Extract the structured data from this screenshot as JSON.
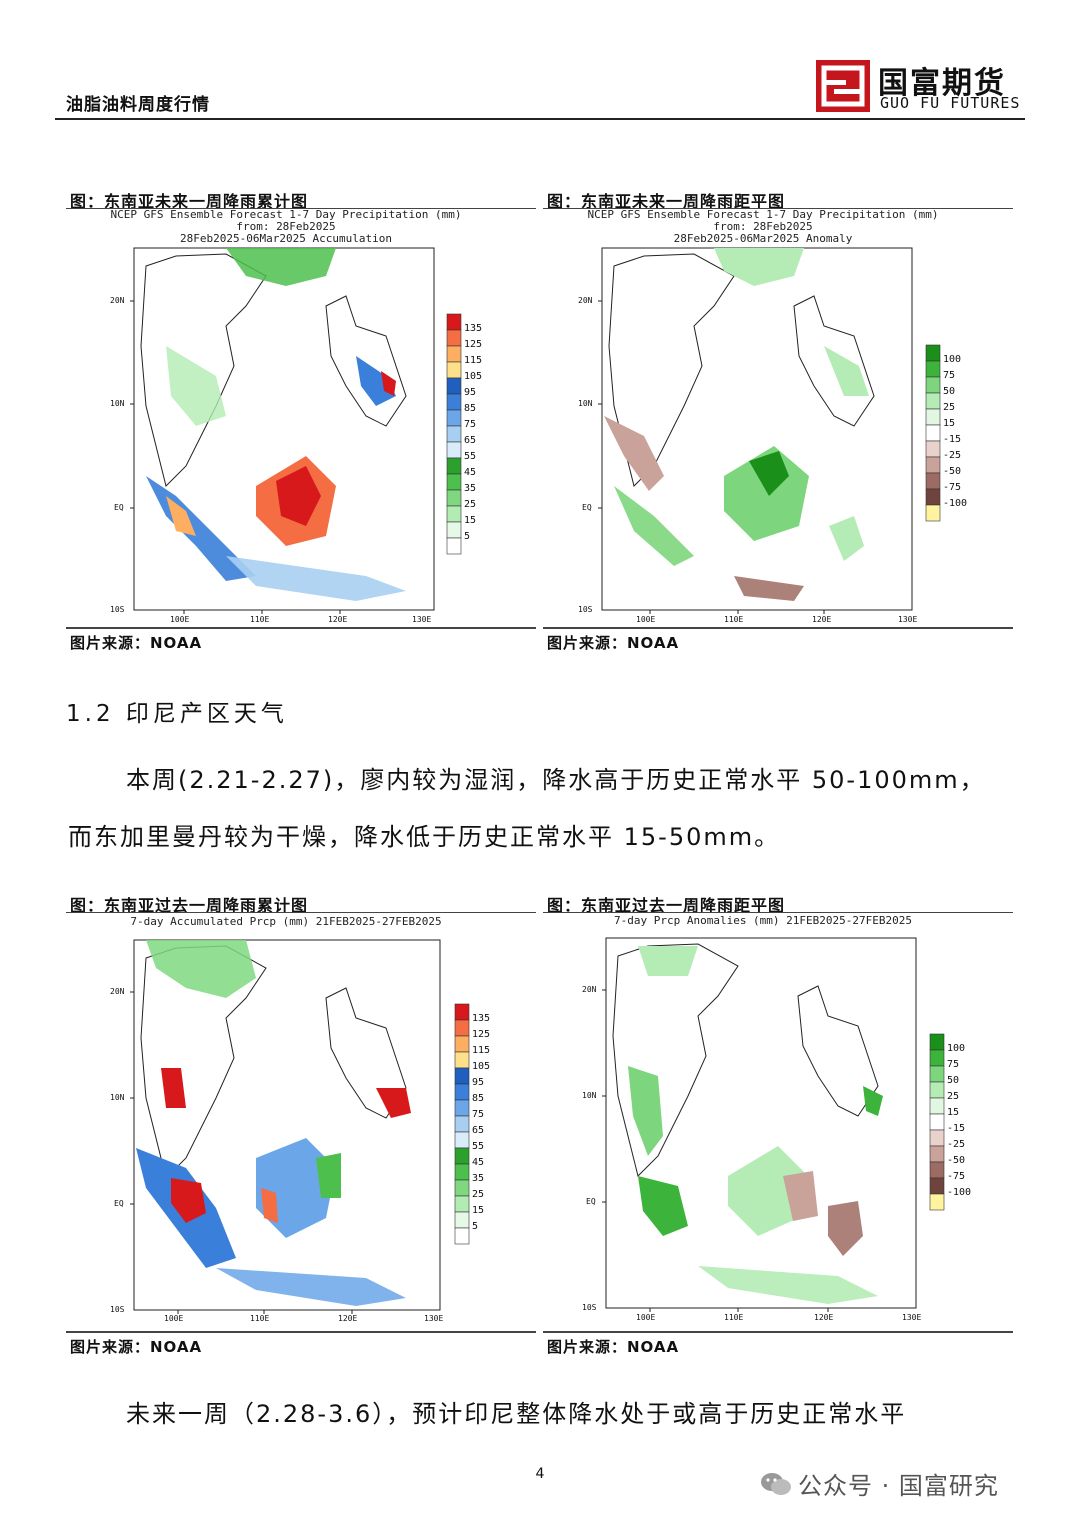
{
  "header": {
    "doc_title": "油脂油料周度行情",
    "logo_cn": "国富期货",
    "logo_en": "GUO FU FUTURES",
    "logo_color": "#c4161c"
  },
  "figures": [
    {
      "caption": "图：东南亚未来一周降雨累计图",
      "subtitle_lines": [
        "NCEP GFS Ensemble Forecast 1-7 Day Precipitation (mm)",
        "from: 28Feb2025",
        "28Feb2025-06Mar2025 Accumulation"
      ],
      "source": "图片来源：NOAA",
      "legend_type": "accum"
    },
    {
      "caption": "图：东南亚未来一周降雨距平图",
      "subtitle_lines": [
        "NCEP GFS Ensemble Forecast 1-7 Day Precipitation (mm)",
        "from: 28Feb2025",
        "28Feb2025-06Mar2025 Anomaly"
      ],
      "source": "图片来源：NOAA",
      "legend_type": "anom"
    },
    {
      "caption": "图：东南亚过去一周降雨累计图",
      "subtitle_lines": [
        "7-day Accumulated Prcp (mm) 21FEB2025-27FEB2025"
      ],
      "source": "图片来源：NOAA",
      "legend_type": "accum"
    },
    {
      "caption": "图：东南亚过去一周降雨距平图",
      "subtitle_lines": [
        "7-day Prcp Anomalies (mm) 21FEB2025-27FEB2025"
      ],
      "source": "图片来源：NOAA",
      "legend_type": "anom"
    }
  ],
  "map_axes": {
    "lat_labels": [
      "20N",
      "10N",
      "EQ",
      "10S"
    ],
    "lon_labels": [
      "100E",
      "110E",
      "120E",
      "130E"
    ]
  },
  "legends": {
    "accum": {
      "labels": [
        "135",
        "125",
        "115",
        "105",
        "95",
        "85",
        "75",
        "65",
        "55",
        "45",
        "35",
        "25",
        "15",
        "5"
      ],
      "colors": [
        "#d7191c",
        "#f46d43",
        "#fdae61",
        "#fee08b",
        "#1f5fbf",
        "#3a7fd9",
        "#6aa6e8",
        "#a8cff2",
        "#d9ecfa",
        "#2ca02c",
        "#4cbf4c",
        "#7fd87f",
        "#b3ecb3",
        "#e6f8e6",
        "#ffffff"
      ]
    },
    "anom": {
      "labels": [
        "100",
        "75",
        "50",
        "25",
        "15",
        "-15",
        "-25",
        "-50",
        "-75",
        "-100"
      ],
      "colors": [
        "#1a8f1a",
        "#3cb43c",
        "#7dd67d",
        "#b5ebb5",
        "#e2f7e2",
        "#ffffff",
        "#ead2cc",
        "#c9a29a",
        "#9c6b63",
        "#6e443d",
        "#fff3a0"
      ]
    }
  },
  "section_title": "1.2 印尼产区天气",
  "para1": [
    "本周(2.21-2.27)，廖内较为湿润，降水高于历史正常水平 50-100mm，",
    "而东加里曼丹较为干燥，降水低于历史正常水平 15-50mm。"
  ],
  "para2": "未来一周（2.28-3.6），预计印尼整体降水处于或高于历史正常水平",
  "page_number": "4",
  "watermark": "公众号 · 国富研究"
}
